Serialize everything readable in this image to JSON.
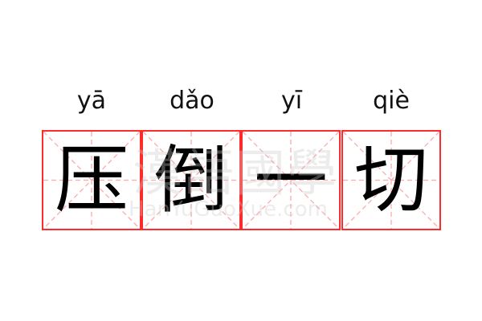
{
  "entry": {
    "characters": [
      {
        "hanzi": "压",
        "pinyin": "yā"
      },
      {
        "hanzi": "倒",
        "pinyin": "dǎo"
      },
      {
        "hanzi": "一",
        "pinyin": "yī"
      },
      {
        "hanzi": "切",
        "pinyin": "qiè"
      }
    ]
  },
  "watermark": {
    "cn": "漢語國學",
    "en": "HanYuGuoXue.com"
  },
  "colors": {
    "border": "#ff2b2b",
    "guide": "#ffaaaa",
    "text": "#000000"
  }
}
